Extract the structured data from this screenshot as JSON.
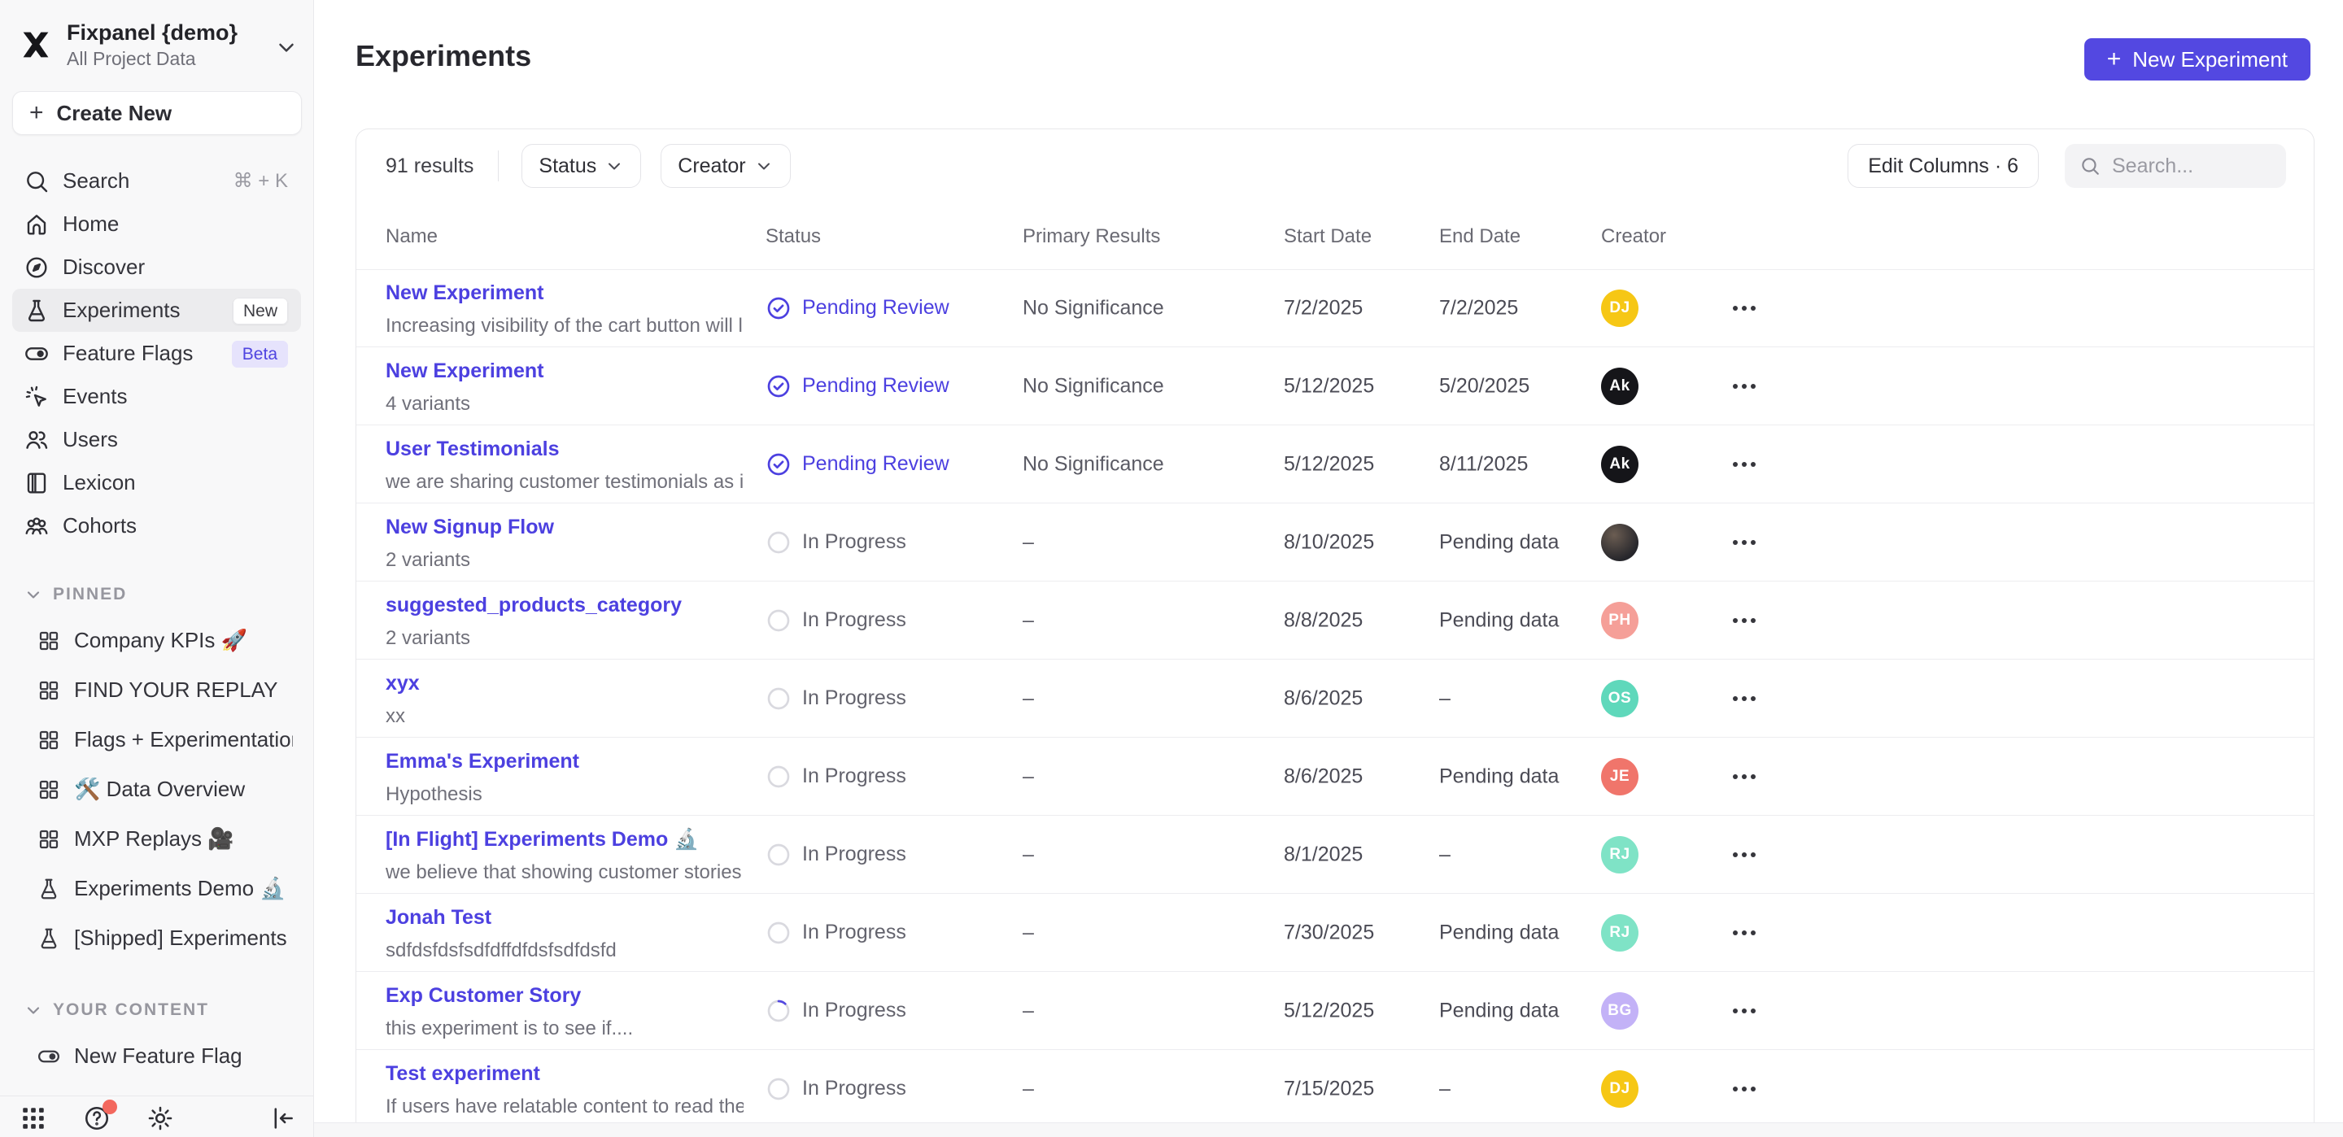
{
  "sidebar": {
    "workspace": {
      "name": "Fixpanel {demo}",
      "subtitle": "All Project Data"
    },
    "create_new_label": "Create New",
    "nav": [
      {
        "label": "Search",
        "icon": "search-icon",
        "shortcut": "⌘ + K"
      },
      {
        "label": "Home",
        "icon": "home-icon"
      },
      {
        "label": "Discover",
        "icon": "compass-icon"
      },
      {
        "label": "Experiments",
        "icon": "flask-icon",
        "badge": "New",
        "badge_style": "light",
        "active": true
      },
      {
        "label": "Feature Flags",
        "icon": "toggle-icon",
        "badge": "Beta",
        "badge_style": "purple"
      },
      {
        "label": "Events",
        "icon": "cursor-click-icon"
      },
      {
        "label": "Users",
        "icon": "users-icon"
      },
      {
        "label": "Lexicon",
        "icon": "book-icon"
      },
      {
        "label": "Cohorts",
        "icon": "cohorts-icon"
      }
    ],
    "sections": [
      {
        "title": "PINNED",
        "items": [
          {
            "label": "Company KPIs 🚀",
            "icon": "board-icon"
          },
          {
            "label": "FIND YOUR REPLAY",
            "icon": "board-icon"
          },
          {
            "label": "Flags + Experimentation Demo ,",
            "icon": "board-icon"
          },
          {
            "label": "🛠️ Data Overview",
            "icon": "board-icon"
          },
          {
            "label": "MXP Replays 🎥",
            "icon": "board-icon"
          },
          {
            "label": "Experiments Demo 🔬",
            "icon": "flask-icon"
          },
          {
            "label": "[Shipped] Experiments Demo 🖊️",
            "icon": "flask-icon"
          }
        ]
      },
      {
        "title": "YOUR CONTENT",
        "items": [
          {
            "label": "New Feature Flag",
            "icon": "toggle-icon"
          }
        ]
      }
    ],
    "bottom_icons": [
      "apps-grid-icon",
      "help-icon",
      "gear-icon",
      "collapse-sidebar-icon"
    ]
  },
  "header": {
    "title": "Experiments",
    "new_experiment_label": "New Experiment"
  },
  "toolbar": {
    "results_count": "91 results",
    "filters": [
      {
        "label": "Status"
      },
      {
        "label": "Creator"
      }
    ],
    "edit_columns_label": "Edit Columns · 6",
    "search_placeholder": "Search..."
  },
  "table": {
    "columns": [
      "Name",
      "Status",
      "Primary Results",
      "Start Date",
      "End Date",
      "Creator"
    ],
    "rows": [
      {
        "name": "New Experiment",
        "subtitle": "Increasing visibility of the cart button will l...",
        "status": "Pending Review",
        "status_type": "pending",
        "primary": "No Significance",
        "start": "7/2/2025",
        "end": "7/2/2025",
        "avatar": {
          "initials": "DJ",
          "bg": "#f6c715"
        }
      },
      {
        "name": "New Experiment",
        "subtitle": "4 variants",
        "status": "Pending Review",
        "status_type": "pending",
        "primary": "No Significance",
        "start": "5/12/2025",
        "end": "5/20/2025",
        "avatar": {
          "initials": "Ak",
          "bg": "#151519"
        }
      },
      {
        "name": "User Testimonials",
        "subtitle": "we are sharing customer testimonials as in...",
        "status": "Pending Review",
        "status_type": "pending",
        "primary": "No Significance",
        "start": "5/12/2025",
        "end": "8/11/2025",
        "avatar": {
          "initials": "Ak",
          "bg": "#151519"
        }
      },
      {
        "name": "New Signup Flow",
        "subtitle": "2 variants",
        "status": "In Progress",
        "status_type": "progress",
        "primary": "–",
        "start": "8/10/2025",
        "end": "Pending data",
        "avatar": {
          "type": "photo"
        }
      },
      {
        "name": "suggested_products_category",
        "subtitle": "2 variants",
        "status": "In Progress",
        "status_type": "progress",
        "primary": "–",
        "start": "8/8/2025",
        "end": "Pending data",
        "avatar": {
          "initials": "PH",
          "bg": "#f59f98"
        }
      },
      {
        "name": "xyx",
        "subtitle": "xx",
        "status": "In Progress",
        "status_type": "progress",
        "primary": "–",
        "start": "8/6/2025",
        "end": "–",
        "avatar": {
          "initials": "OS",
          "bg": "#5fd8bb"
        }
      },
      {
        "name": "Emma's Experiment",
        "subtitle": "Hypothesis",
        "status": "In Progress",
        "status_type": "progress",
        "primary": "–",
        "start": "8/6/2025",
        "end": "Pending data",
        "avatar": {
          "initials": "JE",
          "bg": "#f0756b"
        }
      },
      {
        "name": "[In Flight] Experiments Demo 🔬",
        "subtitle": "we believe that showing customer stories ...",
        "status": "In Progress",
        "status_type": "progress",
        "primary": "–",
        "start": "8/1/2025",
        "end": "–",
        "avatar": {
          "initials": "RJ",
          "bg": "#7fe3c6"
        }
      },
      {
        "name": "Jonah Test",
        "subtitle": "sdfdsfdsfsdfdffdfdsfsdfdsfd",
        "status": "In Progress",
        "status_type": "progress",
        "primary": "–",
        "start": "7/30/2025",
        "end": "Pending data",
        "avatar": {
          "initials": "RJ",
          "bg": "#7fe3c6"
        }
      },
      {
        "name": "Exp Customer Story",
        "subtitle": "this experiment is to see if....",
        "status": "In Progress",
        "status_type": "progress_spinner",
        "primary": "–",
        "start": "5/12/2025",
        "end": "Pending data",
        "avatar": {
          "initials": "BG",
          "bg": "#c3b2f7"
        }
      },
      {
        "name": "Test experiment",
        "subtitle": "If users have relatable content to read they...",
        "status": "In Progress",
        "status_type": "progress",
        "primary": "–",
        "start": "7/15/2025",
        "end": "–",
        "avatar": {
          "initials": "DJ",
          "bg": "#f6c715"
        }
      }
    ]
  },
  "colors": {
    "accent": "#5348e1",
    "link": "#4c40e0",
    "pending_review": "#4c40e0",
    "in_progress": "#63636d",
    "sidebar_bg": "#f8f8f9",
    "beta_badge_bg": "#e6e3fc"
  }
}
